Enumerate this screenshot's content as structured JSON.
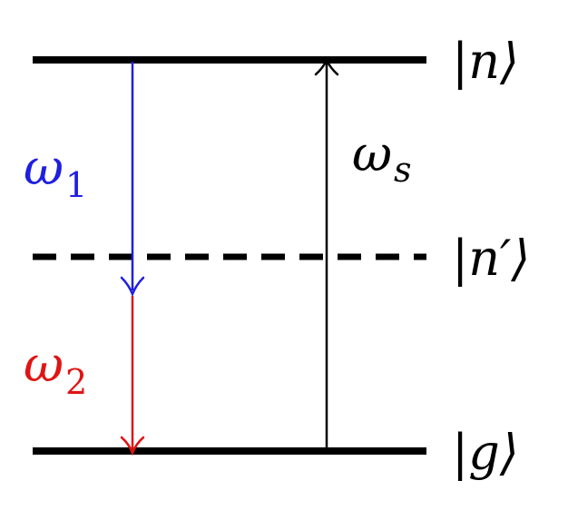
{
  "levels": {
    "top": {
      "label": "|n⟩",
      "style": "solid"
    },
    "middle": {
      "label": "|n′⟩",
      "style": "dashed"
    },
    "bottom": {
      "label": "|g⟩",
      "style": "solid"
    }
  },
  "transitions": {
    "omega1": {
      "symbol": "ω",
      "subscript": "1",
      "color": "#1f1fe0",
      "direction": "down"
    },
    "omega2": {
      "symbol": "ω",
      "subscript": "2",
      "color": "#e01414",
      "direction": "down"
    },
    "omegas": {
      "symbol": "ω",
      "subscript": "s",
      "color": "#000000",
      "direction": "up"
    }
  },
  "colors": {
    "level_line": "#000000",
    "background": "#ffffff"
  }
}
